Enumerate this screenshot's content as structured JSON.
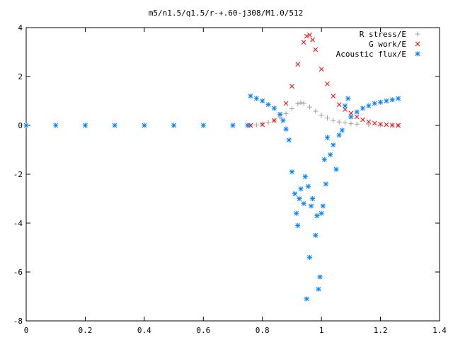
{
  "chart_data": {
    "type": "scatter",
    "title": "m5/n1.5/q1.5/r-+.60-j308/M1.0/512",
    "xlabel": "",
    "ylabel": "",
    "xlim": [
      0,
      1.4
    ],
    "ylim": [
      -8,
      4
    ],
    "x_ticks": [
      "0",
      "0.2",
      "0.4",
      "0.6",
      "0.8",
      "1",
      "1.2",
      "1.4"
    ],
    "y_ticks": [
      "4",
      "2",
      "0",
      "-2",
      "-4",
      "-6",
      "-8"
    ],
    "grid": false,
    "legend_position": "top-right",
    "series": [
      {
        "name": "R stress/E",
        "marker": "plus",
        "color": "#a0a0a0",
        "points": [
          [
            0.76,
            0.0
          ],
          [
            0.78,
            0.02
          ],
          [
            0.8,
            0.06
          ],
          [
            0.82,
            0.12
          ],
          [
            0.84,
            0.2
          ],
          [
            0.86,
            0.32
          ],
          [
            0.88,
            0.48
          ],
          [
            0.9,
            0.68
          ],
          [
            0.92,
            0.88
          ],
          [
            0.93,
            0.93
          ],
          [
            0.94,
            0.9
          ],
          [
            0.96,
            0.75
          ],
          [
            0.98,
            0.58
          ],
          [
            1.0,
            0.42
          ],
          [
            1.02,
            0.3
          ],
          [
            1.04,
            0.2
          ],
          [
            1.06,
            0.14
          ],
          [
            1.08,
            0.1
          ],
          [
            1.1,
            0.07
          ],
          [
            1.12,
            0.05
          ],
          [
            1.16,
            0.03
          ],
          [
            1.2,
            0.02
          ],
          [
            1.24,
            0.01
          ],
          [
            1.26,
            0.0
          ]
        ]
      },
      {
        "name": "G work/E",
        "marker": "cross",
        "color": "#ff0000",
        "points": [
          [
            0.76,
            0.0
          ],
          [
            0.8,
            0.03
          ],
          [
            0.84,
            0.2
          ],
          [
            0.86,
            0.45
          ],
          [
            0.88,
            0.9
          ],
          [
            0.9,
            1.6
          ],
          [
            0.92,
            2.5
          ],
          [
            0.94,
            3.4
          ],
          [
            0.95,
            3.65
          ],
          [
            0.96,
            3.7
          ],
          [
            0.97,
            3.5
          ],
          [
            0.98,
            3.1
          ],
          [
            1.0,
            2.3
          ],
          [
            1.02,
            1.7
          ],
          [
            1.04,
            1.2
          ],
          [
            1.06,
            0.85
          ],
          [
            1.08,
            0.65
          ],
          [
            1.1,
            0.5
          ],
          [
            1.12,
            0.35
          ],
          [
            1.14,
            0.23
          ],
          [
            1.16,
            0.15
          ],
          [
            1.18,
            0.09
          ],
          [
            1.2,
            0.05
          ],
          [
            1.22,
            0.03
          ],
          [
            1.24,
            0.01
          ],
          [
            1.26,
            0.0
          ]
        ]
      },
      {
        "name": "Acoustic flux/E",
        "marker": "star",
        "color": "#0080ff",
        "points": [
          [
            0.0,
            0.0
          ],
          [
            0.1,
            0.0
          ],
          [
            0.2,
            0.0
          ],
          [
            0.3,
            0.0
          ],
          [
            0.4,
            0.0
          ],
          [
            0.5,
            0.0
          ],
          [
            0.6,
            0.0
          ],
          [
            0.7,
            0.0
          ],
          [
            0.75,
            0.0
          ],
          [
            0.76,
            1.2
          ],
          [
            0.78,
            1.1
          ],
          [
            0.8,
            1.0
          ],
          [
            0.82,
            0.85
          ],
          [
            0.84,
            0.7
          ],
          [
            0.86,
            0.45
          ],
          [
            0.87,
            0.2
          ],
          [
            0.88,
            -0.15
          ],
          [
            0.89,
            -0.6
          ],
          [
            0.9,
            -1.9
          ],
          [
            0.91,
            -2.8
          ],
          [
            0.92,
            -4.1
          ],
          [
            0.93,
            -2.6
          ],
          [
            0.94,
            -3.2
          ],
          [
            0.95,
            -7.1
          ],
          [
            0.96,
            -5.4
          ],
          [
            0.97,
            -3.0
          ],
          [
            0.98,
            -4.5
          ],
          [
            0.99,
            -6.7
          ],
          [
            1.0,
            -3.6
          ],
          [
            1.01,
            -1.4
          ],
          [
            1.02,
            -0.5
          ],
          [
            1.04,
            -0.8
          ],
          [
            1.06,
            -0.4
          ],
          [
            1.08,
            0.8
          ],
          [
            1.1,
            0.35
          ],
          [
            1.12,
            0.55
          ],
          [
            1.14,
            0.7
          ],
          [
            1.16,
            0.8
          ],
          [
            1.18,
            0.9
          ],
          [
            1.2,
            0.95
          ],
          [
            1.22,
            1.0
          ],
          [
            1.24,
            1.05
          ],
          [
            1.26,
            1.1
          ],
          [
            0.995,
            -6.2
          ],
          [
            0.985,
            -3.7
          ],
          [
            1.005,
            -3.3
          ],
          [
            1.015,
            -2.4
          ],
          [
            1.03,
            -1.2
          ],
          [
            1.05,
            -1.8
          ],
          [
            1.07,
            -0.2
          ],
          [
            1.09,
            1.1
          ],
          [
            0.965,
            -3.3
          ],
          [
            0.945,
            -2.1
          ],
          [
            0.925,
            -3.0
          ],
          [
            0.915,
            -3.6
          ],
          [
            0.955,
            -2.5
          ]
        ]
      }
    ]
  }
}
